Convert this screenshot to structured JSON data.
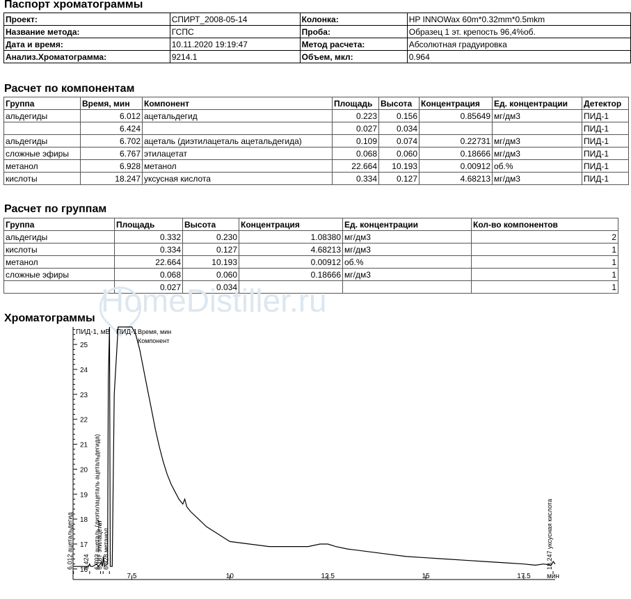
{
  "passport": {
    "title": "Паспорт хроматограммы",
    "rows": [
      {
        "l1": "Проект:",
        "v1": "СПИРТ_2008-05-14",
        "l2": "Колонка:",
        "v2": "HP INNOWax 60m*0.32mm*0.5mkm"
      },
      {
        "l1": "Название метода:",
        "v1": "ГСПС",
        "l2": "Проба:",
        "v2": "Образец 1 эт. крепость 96,4%об."
      },
      {
        "l1": "Дата и время:",
        "v1": "10.11.2020 19:19:47",
        "l2": "Метод расчета:",
        "v2": "Абсолютная градуировка"
      },
      {
        "l1": "Анализ.Хроматограмма:",
        "v1": "9214.1",
        "l2": "Объем, мкл:",
        "v2": "0.964"
      }
    ]
  },
  "components": {
    "title": "Расчет по компонентам",
    "headers": [
      "Группа",
      "Время, мин",
      "Компонент",
      "Площадь",
      "Высота",
      "Концентрация",
      "Ед. концентрации",
      "Детектор"
    ],
    "rows": [
      [
        "альдегиды",
        "6.012",
        "ацетальдегид",
        "0.223",
        "0.156",
        "0.85649",
        "мг/дм3",
        "ПИД-1"
      ],
      [
        "",
        "6.424",
        "",
        "0.027",
        "0.034",
        "",
        "",
        "ПИД-1"
      ],
      [
        "альдегиды",
        "6.702",
        "ацеталь (диэтилацеталь ацетальдегида)",
        "0.109",
        "0.074",
        "0.22731",
        "мг/дм3",
        "ПИД-1"
      ],
      [
        "сложные эфиры",
        "6.767",
        "этилацетат",
        "0.068",
        "0.060",
        "0.18666",
        "мг/дм3",
        "ПИД-1"
      ],
      [
        "метанол",
        "6.928",
        "метанол",
        "22.664",
        "10.193",
        "0.00912",
        "об.%",
        "ПИД-1"
      ],
      [
        "кислоты",
        "18.247",
        "уксусная кислота",
        "0.334",
        "0.127",
        "4.68213",
        "мг/дм3",
        "ПИД-1"
      ]
    ]
  },
  "groups": {
    "title": "Расчет по группам",
    "headers": [
      "Группа",
      "Площадь",
      "Высота",
      "Концентрация",
      "Ед. концентрации",
      "Кол-во компонентов"
    ],
    "rows": [
      [
        "альдегиды",
        "0.332",
        "0.230",
        "1.08380",
        "мг/дм3",
        "2"
      ],
      [
        "кислоты",
        "0.334",
        "0.127",
        "4.68213",
        "мг/дм3",
        "1"
      ],
      [
        "метанол",
        "22.664",
        "10.193",
        "0.00912",
        "об.%",
        "1"
      ],
      [
        "сложные эфиры",
        "0.068",
        "0.060",
        "0.18666",
        "мг/дм3",
        "1"
      ],
      [
        "",
        "0.027",
        "0.034",
        "",
        "",
        "1"
      ]
    ]
  },
  "watermark": "HomeDistiller.ru",
  "chromatogram": {
    "section_title": "Хроматограммы",
    "ylabel": "ПИД-1, мВ",
    "trace_label": "ПИД-1",
    "legend": [
      "Время, мин",
      "Компонент"
    ],
    "xunit": "мин"
  },
  "chart_data": {
    "type": "line",
    "xlim": [
      6.0,
      18.3
    ],
    "ylim": [
      15.8,
      25.7
    ],
    "xticks": [
      7.5,
      10,
      12.5,
      15,
      17.5
    ],
    "yticks": [
      16,
      17,
      18,
      19,
      20,
      21,
      22,
      23,
      24,
      25
    ],
    "series": [
      {
        "x": [
          6.0,
          6.2,
          6.4,
          6.42,
          6.45,
          6.5,
          6.6,
          6.65,
          6.7,
          6.72,
          6.75,
          6.77,
          6.8,
          6.88,
          6.9,
          6.93,
          6.95,
          7.0,
          7.05,
          7.15,
          7.25,
          7.4,
          7.5,
          7.6,
          7.7,
          7.8,
          7.9,
          8.0,
          8.1,
          8.2,
          8.3,
          8.4,
          8.5,
          8.6,
          8.7,
          8.8,
          8.85,
          8.9,
          9.0,
          9.2,
          9.4,
          9.6,
          9.8,
          10.0,
          10.5,
          11.0,
          11.5,
          12.0,
          12.3,
          12.5,
          12.7,
          13.0,
          13.5,
          14.0,
          14.5,
          15.0,
          15.5,
          16.0,
          16.5,
          17.0,
          17.5,
          17.8,
          18.0,
          18.2,
          18.25,
          18.3
        ],
        "y": [
          16.1,
          16.1,
          16.1,
          16.2,
          16.1,
          16.1,
          16.2,
          16.1,
          16.2,
          16.3,
          16.1,
          16.5,
          16.1,
          16.2,
          23.6,
          25.7,
          16.1,
          16.1,
          23.0,
          25.7,
          25.7,
          25.7,
          25.7,
          25.4,
          24.8,
          24.0,
          23.2,
          22.4,
          21.6,
          20.9,
          20.3,
          19.8,
          19.4,
          19.1,
          18.8,
          18.6,
          18.8,
          18.5,
          18.3,
          18.0,
          17.7,
          17.5,
          17.3,
          17.1,
          17.0,
          16.9,
          16.9,
          16.9,
          17.0,
          17.0,
          16.9,
          16.8,
          16.7,
          16.6,
          16.5,
          16.45,
          16.4,
          16.35,
          16.3,
          16.25,
          16.2,
          16.15,
          16.2,
          16.15,
          16.3,
          16.2
        ]
      }
    ],
    "peaks": [
      {
        "rt": "6.012",
        "name": "ацетальдегид"
      },
      {
        "rt": "6.424",
        "name": ""
      },
      {
        "rt": "6.702",
        "name": "ацеталь (диэтилацеталь ацетальдегида)"
      },
      {
        "rt": "6.767",
        "name": "этилацетат"
      },
      {
        "rt": "6.928",
        "name": "метанол"
      },
      {
        "rt": "18.247",
        "name": "уксусная кислота"
      }
    ]
  }
}
